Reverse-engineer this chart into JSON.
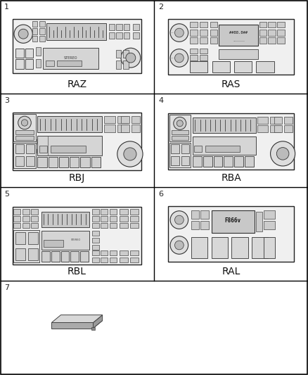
{
  "figsize": [
    4.38,
    5.33
  ],
  "dpi": 100,
  "bg_color": "#ffffff",
  "grid_color": "#000000",
  "items": [
    {
      "num": 1,
      "label": "RAZ",
      "row": 0,
      "col": 0
    },
    {
      "num": 2,
      "label": "RAS",
      "row": 0,
      "col": 1
    },
    {
      "num": 3,
      "label": "RBJ",
      "row": 1,
      "col": 0
    },
    {
      "num": 4,
      "label": "RBA",
      "row": 1,
      "col": 1
    },
    {
      "num": 5,
      "label": "RBL",
      "row": 2,
      "col": 0
    },
    {
      "num": 6,
      "label": "RAL",
      "row": 2,
      "col": 1
    },
    {
      "num": 7,
      "label": "",
      "row": 3,
      "col": 0
    }
  ],
  "label_fontsize": 10,
  "num_fontsize": 8
}
